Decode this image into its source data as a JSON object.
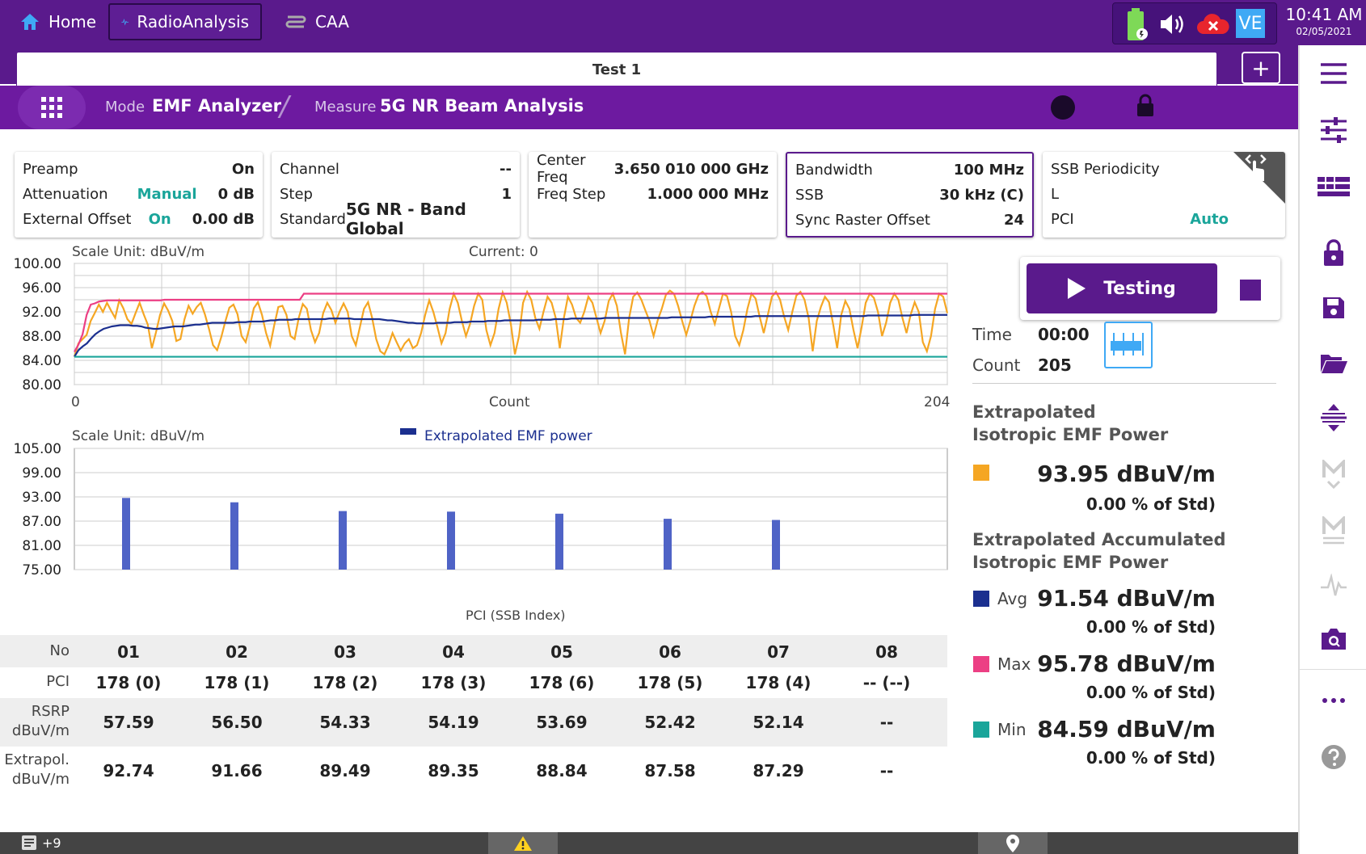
{
  "topbar": {
    "tabs": [
      {
        "label": "Home",
        "icon": "home-icon"
      },
      {
        "label": "RadioAnalysis",
        "icon": "pulse-icon"
      },
      {
        "label": "CAA",
        "icon": "caa-icon"
      }
    ],
    "time": "10:41 AM",
    "date": "02/05/2021",
    "ve_label": "VE"
  },
  "test": {
    "title": "Test 1",
    "add_label": "+"
  },
  "mode": {
    "mode_label": "Mode",
    "mode_value": "EMF Analyzer",
    "separator": "/",
    "measure_label": "Measure",
    "measure_value": "5G NR Beam Analysis"
  },
  "params": {
    "card1": {
      "preamp_label": "Preamp",
      "preamp_value": "On",
      "atten_label": "Attenuation",
      "atten_mode": "Manual",
      "atten_value": "0 dB",
      "ext_label": "External Offset",
      "ext_mode": "On",
      "ext_value": "0.00 dB"
    },
    "card2": {
      "channel_label": "Channel",
      "channel_value": "--",
      "step_label": "Step",
      "step_value": "1",
      "standard_label": "Standard",
      "standard_value": "5G NR - Band Global"
    },
    "card3": {
      "center_label": "Center Freq",
      "center_value": "3.650 010 000 GHz",
      "fstep_label": "Freq Step",
      "fstep_value": "1.000 000 MHz"
    },
    "card4": {
      "bw_label": "Bandwidth",
      "bw_value": "100 MHz",
      "ssb_label": "SSB",
      "ssb_value": "30 kHz (C)",
      "sync_label": "Sync Raster Offset",
      "sync_value": "24"
    },
    "card5": {
      "period_label": "SSB Periodicity",
      "period_value": "",
      "l_label": "L",
      "l_value": "",
      "pci_label": "PCI",
      "pci_value": "Auto"
    }
  },
  "chart_data": [
    {
      "type": "line",
      "title": "Current: 0",
      "scale_unit": "Scale Unit: dBuV/m",
      "xlabel": "Count",
      "x_ticks": [
        "0",
        "204"
      ],
      "xlim": [
        0,
        204
      ],
      "ylim": [
        80,
        100
      ],
      "y_ticks": [
        "100.00",
        "96.00",
        "92.00",
        "88.00",
        "84.00",
        "80.00"
      ],
      "grid": true,
      "series": [
        {
          "name": "",
          "color": "#f5a623",
          "values": [
            84.6,
            86.8,
            87.5,
            88.2,
            90.5,
            91.8,
            93.2,
            92.0,
            93.5,
            92.2,
            91.0,
            93.9,
            92.6,
            90.8,
            90.0,
            91.8,
            93.5,
            91.6,
            89.9,
            86.0,
            88.6,
            91.5,
            93.4,
            92.2,
            90.5,
            87.2,
            87.5,
            90.8,
            93.0,
            91.7,
            92.8,
            93.5,
            91.6,
            89.2,
            86.5,
            85.7,
            87.8,
            90.4,
            92.7,
            93.2,
            91.6,
            88.0,
            87.0,
            89.6,
            92.6,
            93.6,
            91.5,
            88.5,
            86.4,
            89.8,
            92.8,
            93.0,
            91.5,
            88.0,
            87.5,
            91.0,
            93.3,
            92.5,
            89.0,
            87.0,
            88.5,
            91.8,
            93.5,
            92.3,
            90.2,
            92.0,
            93.4,
            92.0,
            88.0,
            86.5,
            89.5,
            92.5,
            93.6,
            91.0,
            87.5,
            85.5,
            85.0,
            86.5,
            88.5,
            87.0,
            85.6,
            86.8,
            87.5,
            86.0,
            86.5,
            88.5,
            91.5,
            93.9,
            92.0,
            89.5,
            86.8,
            88.5,
            92.5,
            95.0,
            93.5,
            90.5,
            88.0,
            90.0,
            93.0,
            95.0,
            94.0,
            89.0,
            86.5,
            88.5,
            92.5,
            95.2,
            93.5,
            90.0,
            85.0,
            88.0,
            93.5,
            95.3,
            94.0,
            91.0,
            89.2,
            92.0,
            94.5,
            93.5,
            91.0,
            86.0,
            91.0,
            94.5,
            93.2,
            91.0,
            90.2,
            92.0,
            94.5,
            93.5,
            91.0,
            88.5,
            90.5,
            93.8,
            95.0,
            93.0,
            88.5,
            85.0,
            91.0,
            94.5,
            95.2,
            94.0,
            92.2,
            90.5,
            88.0,
            90.6,
            92.5,
            94.8,
            95.5,
            95.0,
            93.0,
            90.5,
            88.2,
            90.5,
            93.0,
            94.8,
            95.3,
            94.6,
            92.0,
            90.0,
            92.5,
            95.0,
            94.6,
            92.0,
            88.0,
            86.5,
            89.0,
            92.5,
            95.0,
            94.2,
            91.2,
            88.5,
            91.5,
            94.5,
            95.3,
            94.0,
            91.2,
            89.0,
            92.0,
            94.7,
            95.3,
            94.0,
            91.0,
            85.5,
            90.5,
            92.8,
            94.5,
            93.6,
            90.0,
            86.0,
            91.5,
            93.8,
            92.5,
            89.0,
            86.0,
            89.5,
            93.5,
            95.0,
            94.3,
            92.0,
            88.0,
            90.2,
            93.5,
            95.0,
            94.0,
            91.0,
            88.5,
            91.5,
            93.6,
            92.0,
            87.0,
            85.5,
            88.0,
            92.5,
            95.0,
            94.5,
            91.8
          ]
        },
        {
          "name": "",
          "color": "#ec3f84",
          "values": [
            85.4,
            86.6,
            88.3,
            91.5,
            93.2,
            93.4,
            93.7,
            93.8,
            93.9,
            93.9,
            93.9,
            93.9,
            93.9,
            93.9,
            93.9,
            93.9,
            93.9,
            93.9,
            93.9,
            93.9,
            93.9,
            93.9,
            94.0,
            94.0,
            94.0,
            94.0,
            94.0,
            94.0,
            94.0,
            94.0,
            94.0,
            94.0,
            94.0,
            94.0,
            94.0,
            94.0,
            94.0,
            94.0,
            94.0,
            94.0,
            94.0,
            94.0,
            94.0,
            94.0,
            94.0,
            94.0,
            94.0,
            94.0,
            94.0,
            94.0,
            94.0,
            94.0,
            94.0,
            94.0,
            94.0,
            94.0,
            95.0,
            95.0,
            95.0,
            95.0,
            95.0,
            95.0,
            95.0,
            95.0,
            95.0,
            95.0,
            95.0,
            95.0,
            95.0,
            95.0,
            95.0,
            95.0,
            95.0,
            95.0,
            95.0,
            95.0,
            95.0,
            95.0,
            95.0,
            95.0,
            95.0,
            95.0,
            95.0,
            95.0,
            95.0,
            95.0,
            95.0,
            95.0,
            95.0,
            95.0,
            95.0,
            95.0,
            95.0,
            95.0,
            95.0,
            95.0,
            95.0,
            95.0,
            95.0,
            95.0,
            95.0,
            95.0,
            95.0,
            95.0,
            95.0,
            95.0,
            95.0,
            95.0,
            95.0,
            95.0,
            95.0,
            95.0,
            95.0,
            95.0,
            95.0,
            95.0,
            95.0,
            95.0,
            95.0,
            95.0,
            95.0,
            95.0,
            95.0,
            95.0,
            95.0,
            95.0,
            95.0,
            95.0,
            95.0,
            95.0,
            95.0,
            95.0,
            95.0,
            95.0,
            95.0,
            95.0,
            95.0,
            95.0,
            95.0,
            95.0,
            95.0,
            95.0,
            95.0,
            95.0,
            95.0,
            95.0,
            95.0,
            95.0,
            95.0,
            95.0,
            95.0,
            95.0,
            95.0,
            95.0,
            95.0,
            95.0,
            95.0,
            95.0,
            95.0,
            95.0,
            95.0,
            95.0,
            95.0,
            95.0,
            95.0,
            95.0,
            95.0,
            95.0,
            95.0,
            95.0,
            95.0,
            95.0,
            95.0,
            95.0,
            95.0,
            95.0,
            95.0,
            95.0,
            95.0,
            95.0,
            95.0,
            95.0,
            95.0,
            95.0,
            95.0,
            95.0,
            95.0,
            95.0,
            95.0,
            95.0,
            95.0,
            95.0,
            95.0,
            95.0,
            95.0,
            95.0,
            95.0,
            95.0,
            95.0,
            95.0,
            95.0,
            95.0,
            95.0,
            95.0,
            95.0,
            95.0,
            95.0,
            95.0,
            95.0,
            95.0,
            95.0,
            95.0,
            95.0,
            95.0
          ]
        },
        {
          "name": "",
          "color": "#1b2f8f",
          "values": [
            84.6,
            85.7,
            86.3,
            86.8,
            87.6,
            88.3,
            88.8,
            89.2,
            89.4,
            89.6,
            89.7,
            89.8,
            89.8,
            89.8,
            89.7,
            89.7,
            89.6,
            89.4,
            89.3,
            89.2,
            89.2,
            89.3,
            89.4,
            89.5,
            89.6,
            89.6,
            89.6,
            89.7,
            89.8,
            89.9,
            89.9,
            90.0,
            90.1,
            90.2,
            90.2,
            90.2,
            90.2,
            90.2,
            90.2,
            90.3,
            90.3,
            90.3,
            90.4,
            90.4,
            90.4,
            90.4,
            90.5,
            90.6,
            90.6,
            90.7,
            90.7,
            90.7,
            90.7,
            90.8,
            90.8,
            90.8,
            90.8,
            90.8,
            90.8,
            90.8,
            90.8,
            90.9,
            90.9,
            90.9,
            90.9,
            90.9,
            90.9,
            90.8,
            90.8,
            90.8,
            90.8,
            90.8,
            90.8,
            90.8,
            90.7,
            90.6,
            90.6,
            90.5,
            90.4,
            90.3,
            90.2,
            90.2,
            90.1,
            90.1,
            90.1,
            90.1,
            90.1,
            90.2,
            90.2,
            90.2,
            90.2,
            90.3,
            90.3,
            90.3,
            90.3,
            90.4,
            90.4,
            90.4,
            90.4,
            90.5,
            90.5,
            90.5,
            90.5,
            90.6,
            90.6,
            90.6,
            90.6,
            90.6,
            90.6,
            90.6,
            90.6,
            90.7,
            90.7,
            90.7,
            90.7,
            90.8,
            90.8,
            90.8,
            90.8,
            90.9,
            90.9,
            90.9,
            90.9,
            90.9,
            90.9,
            90.9,
            90.9,
            91.0,
            91.0,
            91.0,
            91.0,
            91.0,
            91.0,
            91.0,
            91.0,
            91.0,
            91.0,
            91.0,
            91.0,
            91.0,
            91.0,
            91.0,
            91.0,
            91.1,
            91.1,
            91.1,
            91.1,
            91.1,
            91.1,
            91.1,
            91.1,
            91.1,
            91.2,
            91.2,
            91.2,
            91.2,
            91.2,
            91.2,
            91.2,
            91.2,
            91.2,
            91.2,
            91.2,
            91.3,
            91.3,
            91.3,
            91.3,
            91.3,
            91.3,
            91.3,
            91.3,
            91.3,
            91.3,
            91.3,
            91.3,
            91.3,
            91.3,
            91.3,
            91.3,
            91.3,
            91.3,
            91.3,
            91.3,
            91.3,
            91.3,
            91.3,
            91.3,
            91.3,
            91.3,
            91.3,
            91.4,
            91.4,
            91.4,
            91.4,
            91.4,
            91.4,
            91.4,
            91.4,
            91.4,
            91.4,
            91.4,
            91.5,
            91.5,
            91.5,
            91.5,
            91.5,
            91.5,
            91.5,
            91.5,
            91.5
          ]
        },
        {
          "name": "",
          "color": "#1aa59a",
          "values": [
            84.59,
            84.59
          ]
        }
      ]
    },
    {
      "type": "bar",
      "scale_unit": "Scale Unit: dBuV/m",
      "xlabel": "PCI (SSB Index)",
      "ylim": [
        75,
        105
      ],
      "y_ticks": [
        "105.00",
        "99.00",
        "93.00",
        "87.00",
        "81.00",
        "75.00"
      ],
      "categories": [
        "01",
        "02",
        "03",
        "04",
        "05",
        "06",
        "07",
        "08"
      ],
      "series": [
        {
          "name": "Extrapolated EMF power",
          "color": "#4f63c6",
          "values": [
            92.74,
            91.66,
            89.49,
            89.35,
            88.84,
            87.58,
            87.29,
            null
          ]
        }
      ],
      "legend": "top-center",
      "grid": true
    }
  ],
  "table": {
    "no_label": "No",
    "pci_label": "PCI",
    "rsrp_label_1": "RSRP",
    "rsrp_label_2": "dBuV/m",
    "extra_label_1": "Extrapol.",
    "extra_label_2": "dBuV/m",
    "columns": [
      {
        "no": "01",
        "pci": "178 (0)",
        "rsrp": "57.59",
        "extra": "92.74"
      },
      {
        "no": "02",
        "pci": "178 (1)",
        "rsrp": "56.50",
        "extra": "91.66"
      },
      {
        "no": "03",
        "pci": "178 (2)",
        "rsrp": "54.33",
        "extra": "89.49"
      },
      {
        "no": "04",
        "pci": "178 (3)",
        "rsrp": "54.19",
        "extra": "89.35"
      },
      {
        "no": "05",
        "pci": "178 (6)",
        "rsrp": "53.69",
        "extra": "88.84"
      },
      {
        "no": "06",
        "pci": "178 (5)",
        "rsrp": "52.42",
        "extra": "87.58"
      },
      {
        "no": "07",
        "pci": "178 (4)",
        "rsrp": "52.14",
        "extra": "87.29"
      },
      {
        "no": "08",
        "pci": "-- (--)",
        "rsrp": "--",
        "extra": "--"
      }
    ]
  },
  "panel": {
    "start_label": "Testing",
    "time_label": "Time",
    "time_value": "00:00",
    "count_label": "Count",
    "count_value": "205",
    "iso_head_1": "Extrapolated",
    "iso_head_2": "Isotropic EMF Power",
    "iso_value": "93.95 dBuV/m",
    "iso_pct": "0.00 % of Std)",
    "acc_head_1": "Extrapolated Accumulated",
    "acc_head_2": "Isotropic EMF Power",
    "avg_label": "Avg",
    "avg_value": "91.54 dBuV/m",
    "avg_pct": "0.00 % of Std)",
    "max_label": "Max",
    "max_value": "95.78 dBuV/m",
    "max_pct": "0.00 % of Std)",
    "min_label": "Min",
    "min_value": "84.59 dBuV/m",
    "min_pct": "0.00 % of Std)",
    "colors": {
      "current": "#f5a623",
      "avg": "#1b2f8f",
      "max": "#ec3f84",
      "min": "#1aa59a"
    }
  },
  "footer": {
    "notes_count": "+9"
  }
}
